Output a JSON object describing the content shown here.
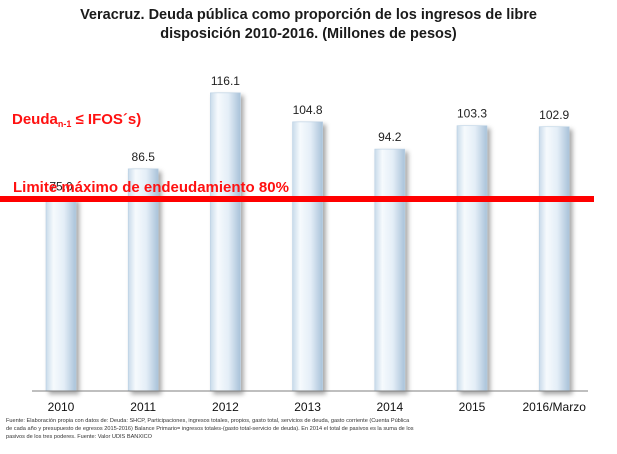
{
  "title_lines": [
    "Veracruz. Deuda pública como proporción de los ingresos de libre",
    "disposición  2010-2016. (Millones  de pesos)"
  ],
  "annotations": {
    "deuda_main": "Deuda",
    "deuda_sub": "n-1",
    "deuda_rest": " ≤ IFOS´s)",
    "limit": "Limite máximo de endeudamiento 80%",
    "limit_color": "#ff0000"
  },
  "source_lines": [
    "Fuente: Elaboración propia con datos de: Deuda: SHCP, Participaciones, ingresos totales, propios, gasto total, servicios de deuda, gasto corriente (Cuenta Pública",
    "de cada año y presupuesto de egresos 2015-2016) Balance Primario= ingresos totales-(gasto total-servicio de deuda). En 2014 el total de pasivos es la suma de los",
    "pasivos de los tres poderes. Fuente: Valor UDIS BANXICO"
  ],
  "chart_data": {
    "type": "bar",
    "title": "Veracruz. Deuda pública como proporción de los ingresos de libre disposición  2010-2016. (Millones  de pesos)",
    "categories": [
      "2010",
      "2011",
      "2012",
      "2013",
      "2014",
      "2015",
      "2016/Marzo"
    ],
    "values": [
      75.0,
      86.5,
      116.1,
      104.8,
      94.2,
      103.3,
      102.9
    ],
    "value_labels": [
      "75.0",
      "86.5",
      "116.1",
      "104.8",
      "94.2",
      "103.3",
      "102.9"
    ],
    "ylim": [
      0,
      125
    ],
    "reference_line": 80,
    "grid": false,
    "legend": "none",
    "bar_color": "#eef5fb",
    "bar_shade": "#b8cfe3"
  }
}
